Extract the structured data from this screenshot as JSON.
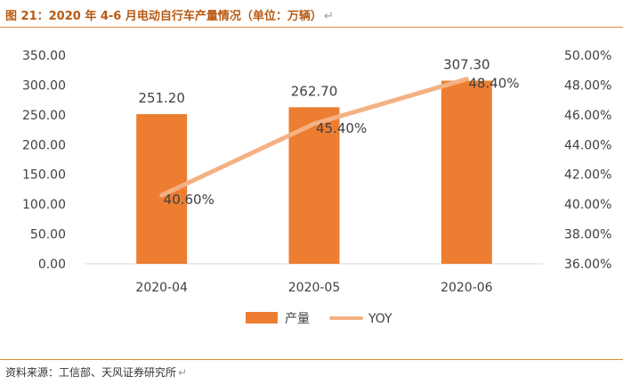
{
  "header": {
    "title": "图 21：2020 年 4-6 月电动自行车产量情况（单位：万辆）",
    "return_mark": "↵"
  },
  "footer": {
    "source": "资料来源：工信部、天风证券研究所",
    "return_mark": "↵"
  },
  "colors": {
    "bar": "#ed7d31",
    "line": "#f4b183",
    "accent": "#e08a3a",
    "axis_text": "#404040"
  },
  "chart_data": {
    "type": "bar",
    "title": "图 21：2020 年 4-6 月电动自行车产量情况（单位：万辆）",
    "categories": [
      "2020-04",
      "2020-05",
      "2020-06"
    ],
    "series": [
      {
        "name": "产量",
        "type": "bar",
        "axis": "left",
        "values": [
          251.2,
          262.7,
          307.3
        ],
        "labels": [
          "251.20",
          "262.70",
          "307.30"
        ]
      },
      {
        "name": "YOY",
        "type": "line",
        "axis": "right",
        "values": [
          40.6,
          45.4,
          48.4
        ],
        "labels": [
          "40.60%",
          "45.40%",
          "48.40%"
        ]
      }
    ],
    "left_axis": {
      "min": 0,
      "max": 350,
      "ticks": [
        "0.00",
        "50.00",
        "100.00",
        "150.00",
        "200.00",
        "250.00",
        "300.00",
        "350.00"
      ]
    },
    "right_axis": {
      "min": 36,
      "max": 50,
      "ticks": [
        "36.00%",
        "38.00%",
        "40.00%",
        "42.00%",
        "44.00%",
        "46.00%",
        "48.00%",
        "50.00%"
      ]
    },
    "xlabel": "",
    "ylabel": "",
    "grid": false,
    "legend": {
      "position": "bottom",
      "items": [
        "产量",
        "YOY"
      ]
    }
  }
}
